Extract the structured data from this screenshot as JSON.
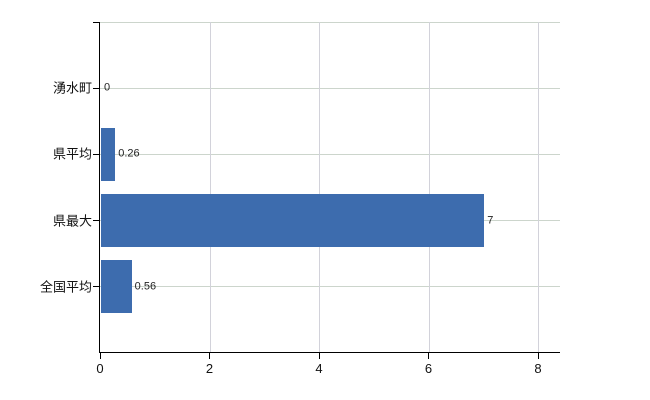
{
  "chart_data": {
    "type": "bar",
    "orientation": "horizontal",
    "title": "",
    "categories": [
      "湧水町",
      "県平均",
      "県最大",
      "全国平均"
    ],
    "values": [
      0,
      0.26,
      7,
      0.56
    ],
    "value_labels": [
      "0",
      "0.26",
      "7",
      "0.56"
    ],
    "x_ticks": [
      0,
      2,
      4,
      6,
      8
    ],
    "x_tick_labels": [
      "0",
      "2",
      "4",
      "6",
      "8"
    ],
    "xlim": [
      0,
      8
    ],
    "grid": true,
    "legend": false,
    "colors": {
      "bar": "#3d6cae",
      "grid_horizontal": "#ccd5cc",
      "grid_vertical": "#d2d2da",
      "axis": "#000000",
      "category_label": "#111111",
      "tick_label": "#111111",
      "value_label": "#222222",
      "background": "#ffffff"
    }
  }
}
